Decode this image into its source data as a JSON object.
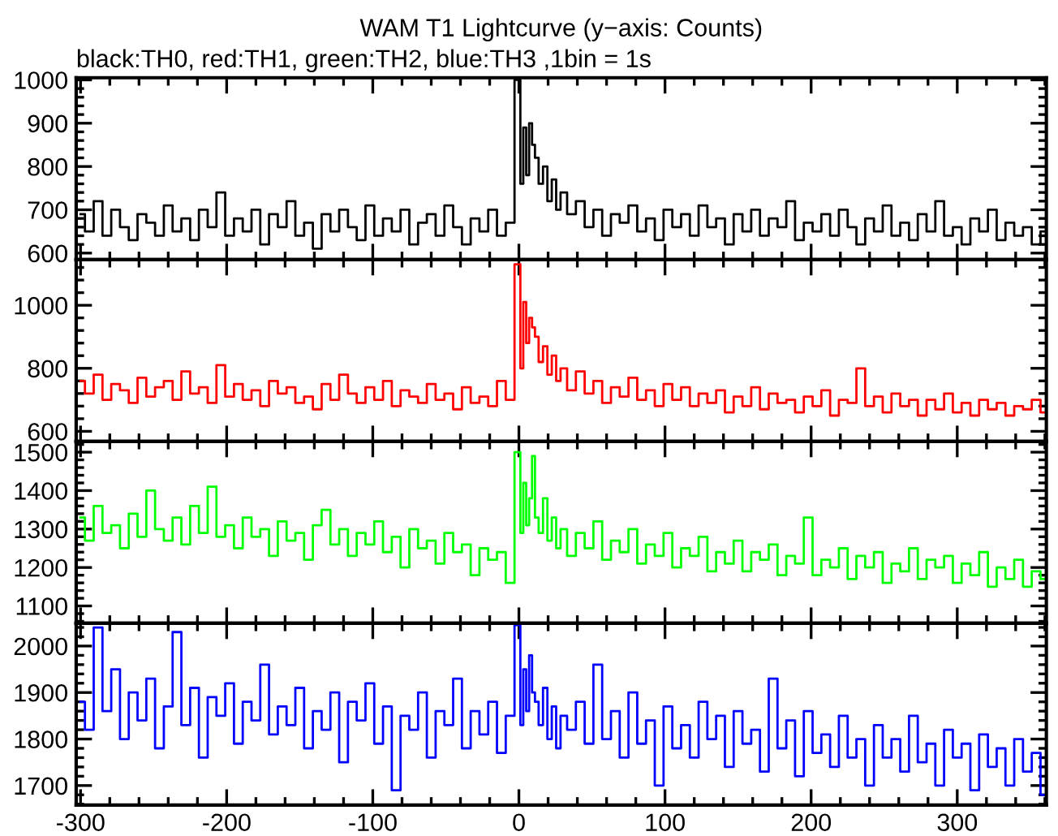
{
  "chart_data": [
    {
      "type": "step",
      "title": "WAM T1 Lightcurve (y−axis: Counts)",
      "subtitle": "black:TH0, red:TH1, green:TH2, blue:TH3 ,1bin = 1s",
      "tick_labels": "y",
      "xlim": [
        -303,
        361
      ],
      "xticks": [
        -300,
        -200,
        -100,
        0,
        100,
        200,
        300
      ],
      "ylim": [
        585,
        1005
      ],
      "yticks": [
        600,
        700,
        800,
        900,
        1000
      ],
      "x": [
        -300,
        -294,
        -288,
        -282,
        -276,
        -270,
        -264,
        -258,
        -252,
        -246,
        -240,
        -234,
        -228,
        -222,
        -216,
        -210,
        -204,
        -198,
        -192,
        -186,
        -180,
        -174,
        -168,
        -162,
        -156,
        -150,
        -144,
        -138,
        -132,
        -126,
        -120,
        -114,
        -108,
        -102,
        -96,
        -90,
        -84,
        -78,
        -72,
        -66,
        -60,
        -54,
        -48,
        -42,
        -36,
        -30,
        -24,
        -18,
        -12,
        -6,
        0,
        2,
        4,
        6,
        8,
        10,
        12,
        15,
        18,
        21,
        24,
        27,
        30,
        36,
        42,
        48,
        54,
        60,
        66,
        72,
        78,
        84,
        90,
        96,
        102,
        108,
        114,
        120,
        126,
        132,
        138,
        144,
        150,
        156,
        162,
        168,
        174,
        180,
        186,
        192,
        198,
        204,
        210,
        216,
        222,
        228,
        234,
        240,
        246,
        252,
        258,
        264,
        270,
        276,
        282,
        288,
        294,
        300,
        306,
        312,
        318,
        324,
        330,
        336,
        342,
        348,
        354,
        360
      ],
      "series": [
        {
          "color": "#000000",
          "values": [
            690,
            650,
            720,
            640,
            700,
            660,
            630,
            690,
            670,
            640,
            710,
            650,
            680,
            630,
            700,
            660,
            740,
            640,
            680,
            650,
            700,
            620,
            690,
            660,
            720,
            640,
            670,
            610,
            690,
            650,
            700,
            660,
            630,
            710,
            640,
            680,
            650,
            700,
            620,
            670,
            690,
            640,
            710,
            660,
            620,
            680,
            650,
            700,
            640,
            670,
            1000,
            760,
            890,
            780,
            900,
            850,
            820,
            760,
            800,
            720,
            770,
            700,
            740,
            690,
            720,
            660,
            700,
            640,
            690,
            670,
            710,
            650,
            680,
            630,
            700,
            660,
            690,
            640,
            710,
            660,
            680,
            620,
            690,
            650,
            700,
            640,
            680,
            660,
            720,
            630,
            670,
            650,
            690,
            640,
            700,
            660,
            620,
            680,
            650,
            710,
            640,
            670,
            630,
            690,
            650,
            720,
            640,
            660,
            620,
            680,
            650,
            700,
            630,
            670,
            640,
            660,
            620,
            650
          ]
        }
      ]
    },
    {
      "type": "step",
      "tick_labels": "y",
      "xlim": [
        -303,
        361
      ],
      "xticks": [
        -300,
        -200,
        -100,
        0,
        100,
        200,
        300
      ],
      "ylim": [
        568,
        1145
      ],
      "yticks": [
        600,
        800,
        1000
      ],
      "x": [
        -300,
        -294,
        -288,
        -282,
        -276,
        -270,
        -264,
        -258,
        -252,
        -246,
        -240,
        -234,
        -228,
        -222,
        -216,
        -210,
        -204,
        -198,
        -192,
        -186,
        -180,
        -174,
        -168,
        -162,
        -156,
        -150,
        -144,
        -138,
        -132,
        -126,
        -120,
        -114,
        -108,
        -102,
        -96,
        -90,
        -84,
        -78,
        -72,
        -66,
        -60,
        -54,
        -48,
        -42,
        -36,
        -30,
        -24,
        -18,
        -12,
        -6,
        0,
        2,
        4,
        6,
        8,
        10,
        12,
        15,
        18,
        21,
        24,
        27,
        30,
        36,
        42,
        48,
        54,
        60,
        66,
        72,
        78,
        84,
        90,
        96,
        102,
        108,
        114,
        120,
        126,
        132,
        138,
        144,
        150,
        156,
        162,
        168,
        174,
        180,
        186,
        192,
        198,
        204,
        210,
        216,
        222,
        228,
        234,
        240,
        246,
        252,
        258,
        264,
        270,
        276,
        282,
        288,
        294,
        300,
        306,
        312,
        318,
        324,
        330,
        336,
        342,
        348,
        354,
        360
      ],
      "series": [
        {
          "color": "#ff0000",
          "values": [
            760,
            720,
            780,
            700,
            750,
            730,
            690,
            770,
            710,
            740,
            760,
            700,
            790,
            720,
            740,
            690,
            810,
            710,
            750,
            700,
            730,
            680,
            760,
            720,
            740,
            690,
            710,
            670,
            750,
            700,
            780,
            720,
            690,
            740,
            700,
            760,
            680,
            730,
            710,
            690,
            750,
            700,
            720,
            670,
            740,
            690,
            710,
            680,
            760,
            700,
            1130,
            800,
            1010,
            880,
            960,
            930,
            900,
            820,
            870,
            780,
            840,
            760,
            800,
            730,
            790,
            720,
            760,
            690,
            740,
            710,
            770,
            700,
            730,
            680,
            750,
            700,
            740,
            680,
            720,
            690,
            730,
            660,
            710,
            680,
            740,
            670,
            720,
            690,
            700,
            660,
            710,
            680,
            730,
            650,
            700,
            690,
            800,
            680,
            710,
            660,
            720,
            680,
            700,
            650,
            700,
            670,
            720,
            660,
            690,
            650,
            700,
            670,
            690,
            650,
            680,
            670,
            700,
            660
          ]
        }
      ]
    },
    {
      "type": "step",
      "tick_labels": "y",
      "xlim": [
        -303,
        361
      ],
      "xticks": [
        -300,
        -200,
        -100,
        0,
        100,
        200,
        300
      ],
      "ylim": [
        1055,
        1528
      ],
      "yticks": [
        1100,
        1200,
        1300,
        1400,
        1500
      ],
      "x": [
        -300,
        -294,
        -288,
        -282,
        -276,
        -270,
        -264,
        -258,
        -252,
        -246,
        -240,
        -234,
        -228,
        -222,
        -216,
        -210,
        -204,
        -198,
        -192,
        -186,
        -180,
        -174,
        -168,
        -162,
        -156,
        -150,
        -144,
        -138,
        -132,
        -126,
        -120,
        -114,
        -108,
        -102,
        -96,
        -90,
        -84,
        -78,
        -72,
        -66,
        -60,
        -54,
        -48,
        -42,
        -36,
        -30,
        -24,
        -18,
        -12,
        -6,
        0,
        2,
        4,
        6,
        8,
        10,
        12,
        15,
        18,
        21,
        24,
        27,
        30,
        36,
        42,
        48,
        54,
        60,
        66,
        72,
        78,
        84,
        90,
        96,
        102,
        108,
        114,
        120,
        126,
        132,
        138,
        144,
        150,
        156,
        162,
        168,
        174,
        180,
        186,
        192,
        198,
        204,
        210,
        216,
        222,
        228,
        234,
        240,
        246,
        252,
        258,
        264,
        270,
        276,
        282,
        288,
        294,
        300,
        306,
        312,
        318,
        324,
        330,
        336,
        342,
        348,
        354,
        360
      ],
      "series": [
        {
          "color": "#00ff00",
          "values": [
            1330,
            1270,
            1360,
            1290,
            1310,
            1250,
            1340,
            1280,
            1400,
            1300,
            1270,
            1330,
            1260,
            1360,
            1290,
            1410,
            1280,
            1310,
            1250,
            1330,
            1280,
            1300,
            1230,
            1320,
            1270,
            1290,
            1220,
            1310,
            1350,
            1260,
            1300,
            1230,
            1290,
            1260,
            1320,
            1240,
            1280,
            1200,
            1300,
            1250,
            1270,
            1210,
            1290,
            1240,
            1260,
            1180,
            1250,
            1220,
            1240,
            1160,
            1500,
            1290,
            1420,
            1310,
            1380,
            1490,
            1330,
            1290,
            1380,
            1270,
            1330,
            1250,
            1300,
            1230,
            1290,
            1250,
            1320,
            1220,
            1270,
            1240,
            1300,
            1210,
            1260,
            1230,
            1290,
            1200,
            1250,
            1230,
            1280,
            1190,
            1240,
            1210,
            1270,
            1190,
            1240,
            1220,
            1260,
            1180,
            1230,
            1210,
            1330,
            1180,
            1220,
            1200,
            1250,
            1170,
            1230,
            1200,
            1240,
            1160,
            1210,
            1190,
            1250,
            1170,
            1220,
            1200,
            1230,
            1160,
            1210,
            1180,
            1240,
            1150,
            1200,
            1170,
            1220,
            1150,
            1190,
            1170
          ]
        }
      ]
    },
    {
      "type": "step",
      "xlim": [
        -303,
        361
      ],
      "xticks": [
        -300,
        -200,
        -100,
        0,
        100,
        200,
        300
      ],
      "ylim": [
        1658,
        2049
      ],
      "yticks": [
        1700,
        1800,
        1900,
        2000
      ],
      "x": [
        -300,
        -294,
        -288,
        -282,
        -276,
        -270,
        -264,
        -258,
        -252,
        -246,
        -240,
        -234,
        -228,
        -222,
        -216,
        -210,
        -204,
        -198,
        -192,
        -186,
        -180,
        -174,
        -168,
        -162,
        -156,
        -150,
        -144,
        -138,
        -132,
        -126,
        -120,
        -114,
        -108,
        -102,
        -96,
        -90,
        -84,
        -78,
        -72,
        -66,
        -60,
        -54,
        -48,
        -42,
        -36,
        -30,
        -24,
        -18,
        -12,
        -6,
        0,
        2,
        4,
        6,
        8,
        10,
        12,
        15,
        18,
        21,
        24,
        27,
        30,
        36,
        42,
        48,
        54,
        60,
        66,
        72,
        78,
        84,
        90,
        96,
        102,
        108,
        114,
        120,
        126,
        132,
        138,
        144,
        150,
        156,
        162,
        168,
        174,
        180,
        186,
        192,
        198,
        204,
        210,
        216,
        222,
        228,
        234,
        240,
        246,
        252,
        258,
        264,
        270,
        276,
        282,
        288,
        294,
        300,
        306,
        312,
        318,
        324,
        330,
        336,
        342,
        348,
        354,
        360
      ],
      "series": [
        {
          "color": "#0000ff",
          "values": [
            1880,
            1820,
            2040,
            1860,
            1950,
            1800,
            1900,
            1840,
            1930,
            1780,
            1870,
            2030,
            1830,
            1910,
            1760,
            1890,
            1850,
            1920,
            1790,
            1880,
            1840,
            1960,
            1810,
            1870,
            1830,
            1910,
            1780,
            1860,
            1820,
            1900,
            1750,
            1880,
            1840,
            1920,
            1790,
            1870,
            1690,
            1850,
            1820,
            1900,
            1760,
            1860,
            1830,
            1930,
            1780,
            1860,
            1810,
            1880,
            1770,
            1850,
            2045,
            1830,
            1950,
            1860,
            1980,
            1900,
            1880,
            1830,
            1910,
            1800,
            1870,
            1780,
            1850,
            1820,
            1880,
            1790,
            1960,
            1800,
            1860,
            1760,
            1900,
            1790,
            1840,
            1700,
            1870,
            1780,
            1830,
            1760,
            1880,
            1800,
            1850,
            1740,
            1860,
            1790,
            1820,
            1730,
            1930,
            1780,
            1840,
            1720,
            1860,
            1770,
            1810,
            1740,
            1850,
            1760,
            1800,
            1700,
            1830,
            1760,
            1800,
            1730,
            1850,
            1750,
            1790,
            1700,
            1820,
            1760,
            1790,
            1690,
            1810,
            1740,
            1780,
            1700,
            1800,
            1730,
            1770,
            1680
          ]
        }
      ]
    }
  ]
}
